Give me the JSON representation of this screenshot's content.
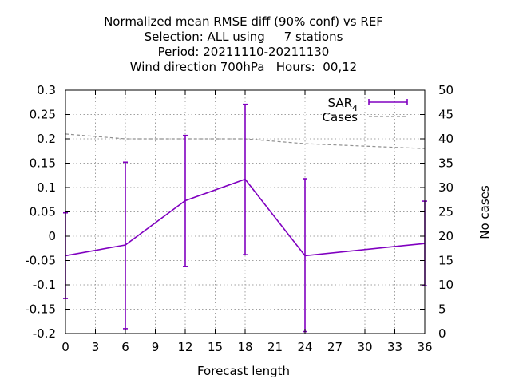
{
  "chart_data": {
    "type": "line",
    "title_lines": [
      "Normalized mean RMSE diff (90% conf) vs REF",
      "Selection: ALL using     7 stations",
      "Period: 20211110-20211130",
      "Wind direction 700hPa   Hours:  00,12"
    ],
    "xlabel": "Forecast length",
    "ylabel": "",
    "y2label": "No cases",
    "xlim": [
      0,
      36
    ],
    "ylim": [
      -0.2,
      0.3
    ],
    "y2lim": [
      0,
      50
    ],
    "xticks": [
      "0",
      "3",
      "6",
      "9",
      "12",
      "15",
      "18",
      "21",
      "24",
      "27",
      "30",
      "33",
      "36"
    ],
    "yticks": [
      "-0.2",
      "-0.15",
      "-0.1",
      "-0.05",
      "0",
      "0.05",
      "0.1",
      "0.15",
      "0.2",
      "0.25",
      "0.3"
    ],
    "y2ticks": [
      "0",
      "5",
      "10",
      "15",
      "20",
      "25",
      "30",
      "35",
      "40",
      "45",
      "50"
    ],
    "grid": true,
    "legend_position": "top-right",
    "series": [
      {
        "name": "SAR",
        "name_subscript": "4",
        "color": "#8000c0",
        "x": [
          0,
          6,
          12,
          18,
          24,
          36
        ],
        "y": [
          -0.04,
          -0.018,
          0.073,
          0.117,
          -0.04,
          -0.015
        ],
        "err_low": [
          -0.128,
          -0.19,
          -0.062,
          -0.038,
          -0.196,
          -0.102
        ],
        "err_high": [
          0.048,
          0.152,
          0.207,
          0.271,
          0.118,
          0.072
        ]
      },
      {
        "name": "Cases",
        "color": "#909090",
        "axis": "y2",
        "x": [
          0,
          6,
          12,
          18,
          24,
          30,
          36
        ],
        "y": [
          41,
          40,
          40,
          40,
          39,
          38.5,
          38
        ]
      }
    ]
  }
}
